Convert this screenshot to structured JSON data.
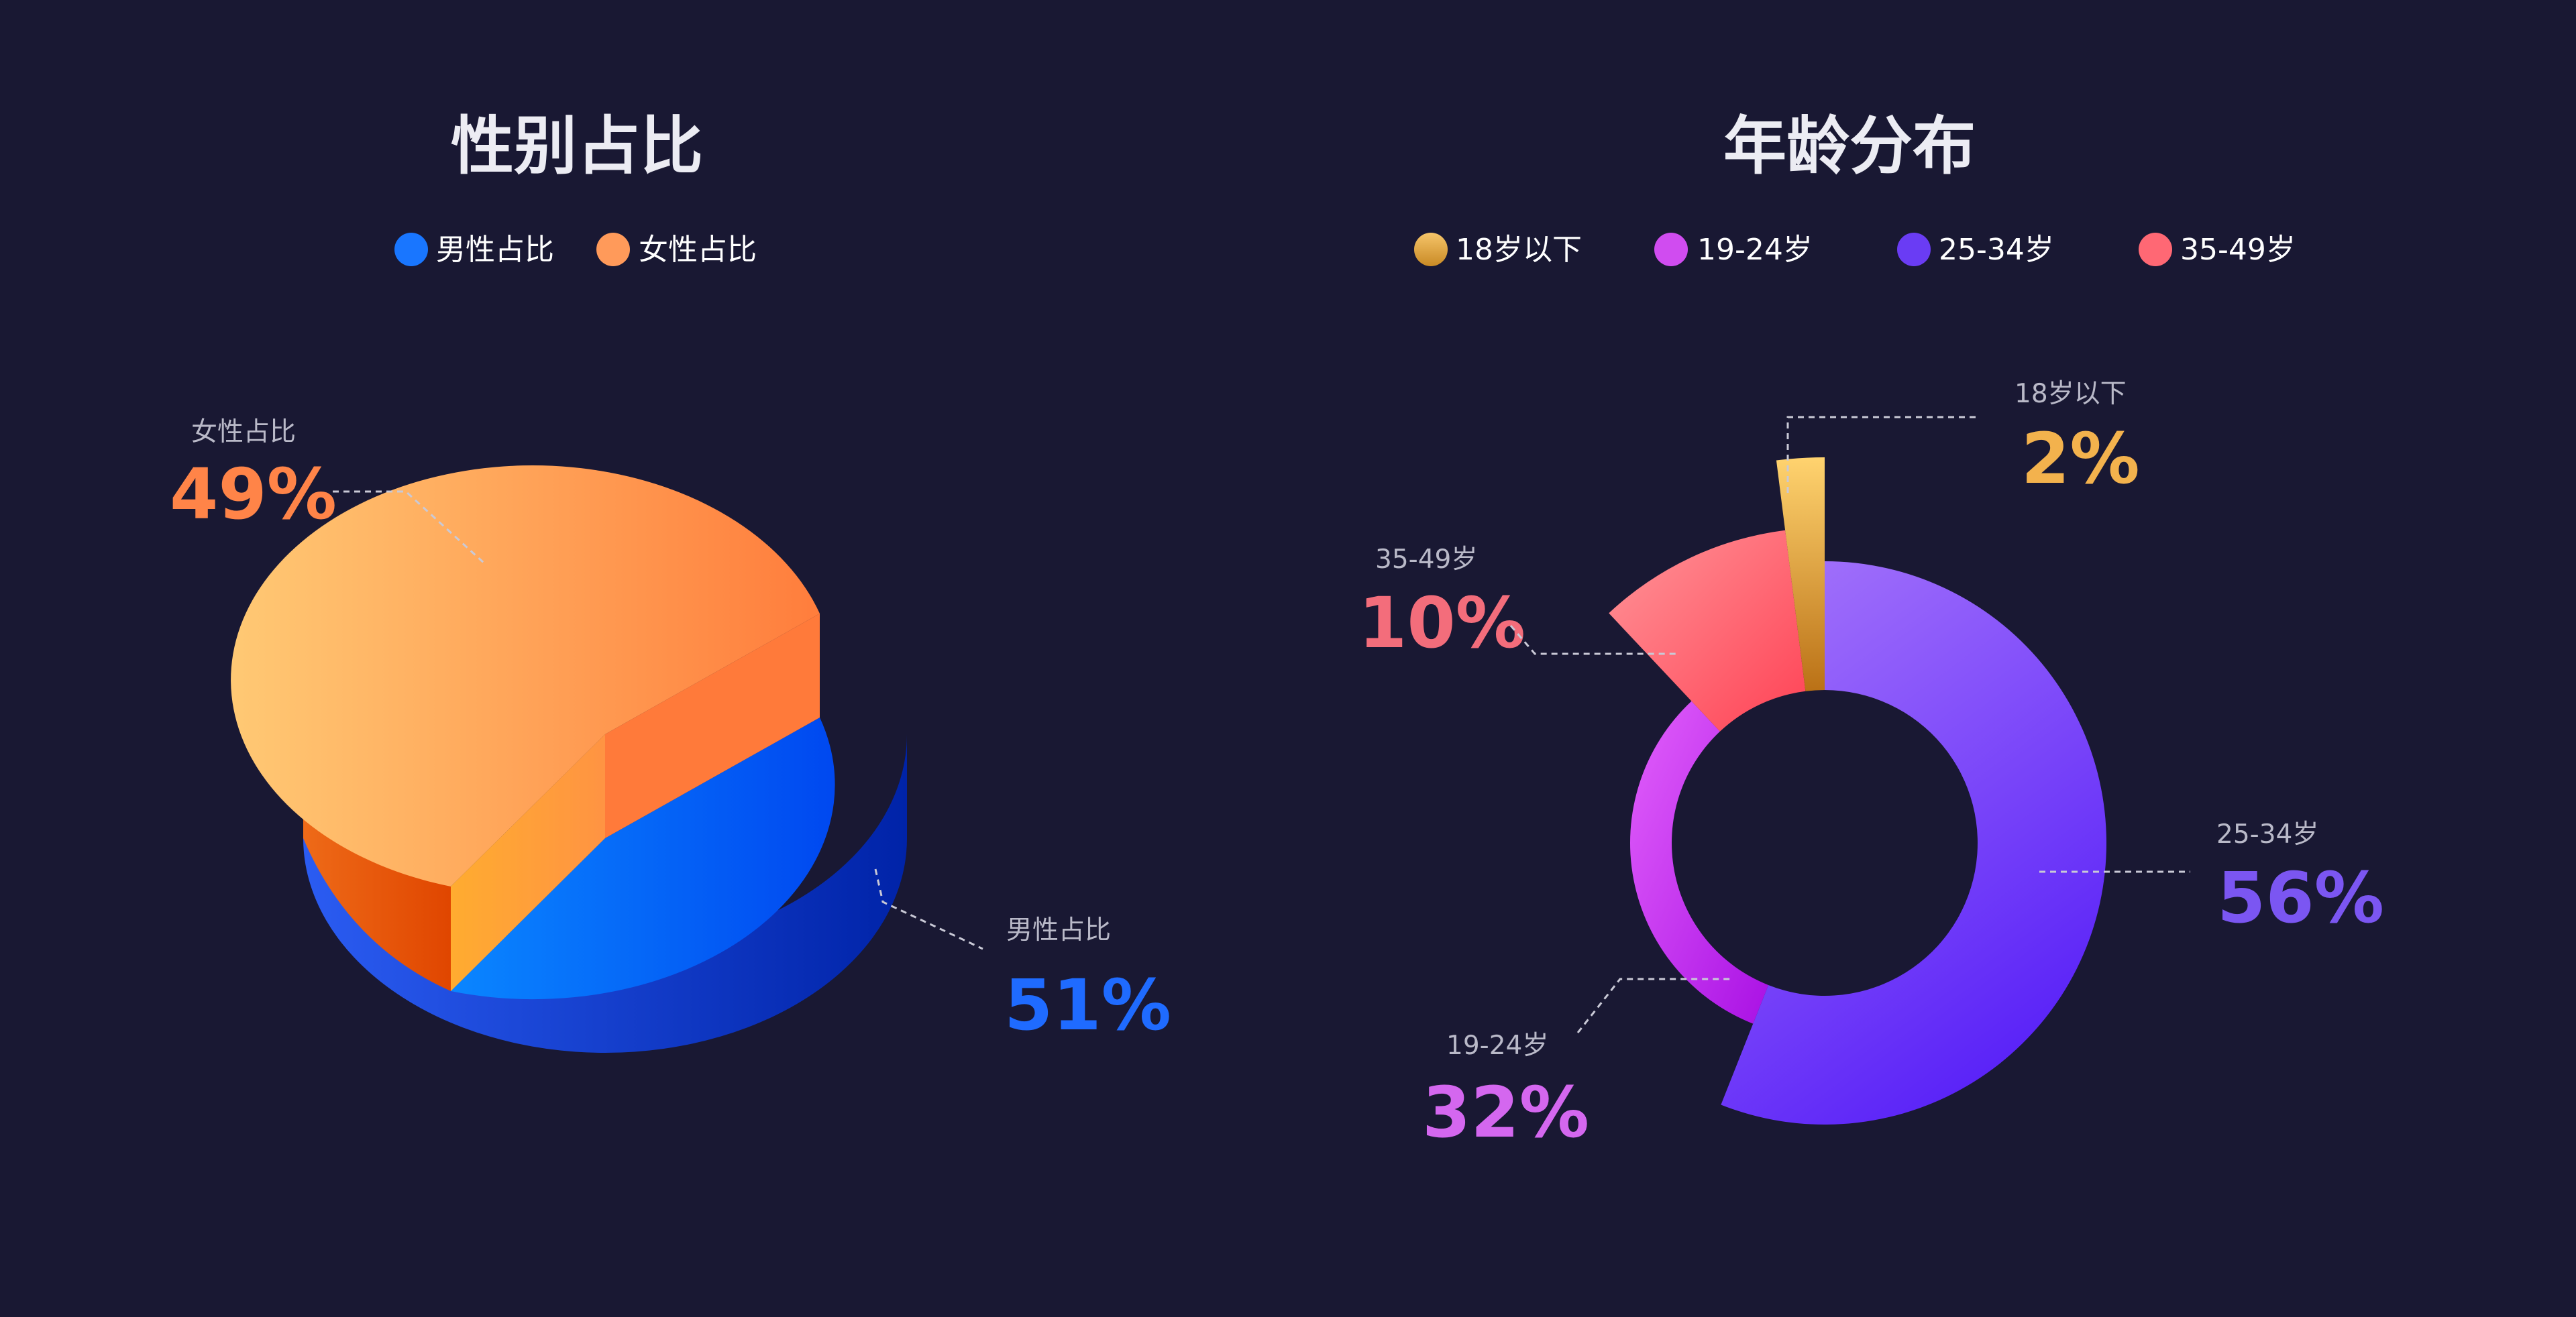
{
  "charts": {
    "gender": {
      "title": "性别占比",
      "legend": [
        {
          "label": "男性占比",
          "color": "#1976ff"
        },
        {
          "label": "女性占比",
          "color": "#ff9a5a"
        }
      ],
      "slices": [
        {
          "label": "男性占比",
          "pct_text": "51%",
          "color": "#1f6bff"
        },
        {
          "label": "女性占比",
          "pct_text": "49%",
          "color": "#ff8448"
        }
      ]
    },
    "age": {
      "title": "年龄分布",
      "legend": [
        {
          "label": "18岁以下",
          "color": "#e3a83c"
        },
        {
          "label": "19-24岁",
          "color": "#d04cf0"
        },
        {
          "label": "25-34岁",
          "color": "#6a3cf4"
        },
        {
          "label": "35-49岁",
          "color": "#ff6874"
        }
      ],
      "slices": [
        {
          "label": "18岁以下",
          "pct_text": "2%",
          "color": "#f3b24d"
        },
        {
          "label": "19-24岁",
          "pct_text": "32%",
          "color": "#d467ef"
        },
        {
          "label": "25-34岁",
          "pct_text": "56%",
          "color": "#7b56f2"
        },
        {
          "label": "35-49岁",
          "pct_text": "10%",
          "color": "#f36d7b"
        }
      ]
    }
  },
  "chart_data": [
    {
      "type": "pie",
      "title": "性别占比",
      "categories": [
        "男性占比",
        "女性占比"
      ],
      "values": [
        51,
        49
      ],
      "legend": "top",
      "style": "3d"
    },
    {
      "type": "pie",
      "title": "年龄分布",
      "categories": [
        "18岁以下",
        "19-24岁",
        "25-34岁",
        "35-49岁"
      ],
      "values": [
        2,
        32,
        56,
        10
      ],
      "legend": "top",
      "style": "donut"
    }
  ]
}
